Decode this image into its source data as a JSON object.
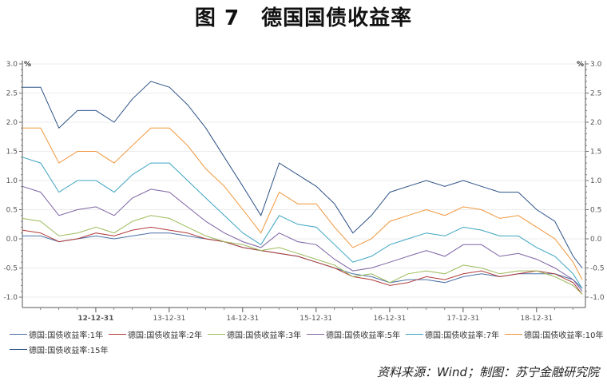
{
  "title": "图 7　德国国债收益率",
  "source": "资料来源：Wind；制图：苏宁金融研究院",
  "chart_data": {
    "type": "line",
    "title": "图 7　德国国债收益率",
    "unit_left": "%",
    "unit_right": "%",
    "ylim": [
      -1.0,
      3.0
    ],
    "yticks": [
      "3.0",
      "2.5",
      "2.0",
      "1.5",
      "1.0",
      "0.5",
      "0.0",
      "-0.5",
      "-1.0"
    ],
    "xlim": [
      "2012-01-01",
      "2019-08-31"
    ],
    "xticks": [
      "12-12-31",
      "13-12-31",
      "14-12-31",
      "15-12-31",
      "16-12-31",
      "17-12-31",
      "18-12-31"
    ],
    "grid": true,
    "legend_position": "bottom",
    "x": [
      "2012-01-01",
      "2012-04-01",
      "2012-07-01",
      "2012-10-01",
      "2013-01-01",
      "2013-04-01",
      "2013-07-01",
      "2013-10-01",
      "2014-01-01",
      "2014-04-01",
      "2014-07-01",
      "2014-10-01",
      "2015-01-01",
      "2015-04-01",
      "2015-07-01",
      "2015-10-01",
      "2016-01-01",
      "2016-04-01",
      "2016-07-01",
      "2016-10-01",
      "2017-01-01",
      "2017-04-01",
      "2017-07-01",
      "2017-10-01",
      "2018-01-01",
      "2018-04-01",
      "2018-07-01",
      "2018-10-01",
      "2019-01-01",
      "2019-04-01",
      "2019-07-01",
      "2019-08-15"
    ],
    "series": [
      {
        "name": "德国:国债收益率:1年",
        "color": "#4a6fa5",
        "values": [
          0.05,
          0.05,
          -0.05,
          0.0,
          0.05,
          0.0,
          0.05,
          0.1,
          0.1,
          0.05,
          0.0,
          -0.05,
          -0.15,
          -0.2,
          -0.25,
          -0.3,
          -0.4,
          -0.5,
          -0.6,
          -0.65,
          -0.75,
          -0.7,
          -0.7,
          -0.75,
          -0.65,
          -0.6,
          -0.65,
          -0.6,
          -0.6,
          -0.6,
          -0.7,
          -0.85
        ]
      },
      {
        "name": "德国:国债收益率:2年",
        "color": "#b03a3a",
        "values": [
          0.15,
          0.1,
          -0.05,
          0.0,
          0.1,
          0.05,
          0.15,
          0.2,
          0.15,
          0.1,
          0.0,
          -0.05,
          -0.15,
          -0.2,
          -0.25,
          -0.3,
          -0.4,
          -0.5,
          -0.65,
          -0.7,
          -0.8,
          -0.75,
          -0.65,
          -0.7,
          -0.6,
          -0.55,
          -0.65,
          -0.6,
          -0.55,
          -0.6,
          -0.75,
          -0.95
        ]
      },
      {
        "name": "德国:国债收益率:3年",
        "color": "#9bbb59",
        "values": [
          0.35,
          0.3,
          0.05,
          0.1,
          0.2,
          0.1,
          0.3,
          0.4,
          0.35,
          0.2,
          0.05,
          -0.05,
          -0.1,
          -0.2,
          -0.15,
          -0.25,
          -0.35,
          -0.45,
          -0.65,
          -0.6,
          -0.75,
          -0.6,
          -0.55,
          -0.6,
          -0.45,
          -0.5,
          -0.6,
          -0.55,
          -0.55,
          -0.65,
          -0.8,
          -0.95
        ]
      },
      {
        "name": "德国:国债收益率:5年",
        "color": "#7e62a3",
        "values": [
          0.9,
          0.8,
          0.4,
          0.5,
          0.55,
          0.4,
          0.7,
          0.85,
          0.8,
          0.55,
          0.3,
          0.1,
          -0.05,
          -0.15,
          0.1,
          -0.05,
          -0.1,
          -0.35,
          -0.55,
          -0.5,
          -0.4,
          -0.3,
          -0.2,
          -0.3,
          -0.1,
          -0.1,
          -0.3,
          -0.25,
          -0.35,
          -0.5,
          -0.7,
          -0.9
        ]
      },
      {
        "name": "德国:国债收益率:7年",
        "color": "#3ca4c0",
        "values": [
          1.4,
          1.3,
          0.8,
          1.0,
          1.0,
          0.8,
          1.1,
          1.3,
          1.3,
          1.0,
          0.7,
          0.4,
          0.1,
          -0.1,
          0.4,
          0.25,
          0.2,
          -0.1,
          -0.4,
          -0.3,
          -0.1,
          0.0,
          0.1,
          0.05,
          0.2,
          0.15,
          0.05,
          0.05,
          -0.15,
          -0.3,
          -0.6,
          -0.85
        ]
      },
      {
        "name": "德国:国债收益率:10年",
        "color": "#f0953a",
        "values": [
          1.9,
          1.9,
          1.3,
          1.5,
          1.5,
          1.3,
          1.6,
          1.9,
          1.9,
          1.6,
          1.2,
          0.9,
          0.5,
          0.1,
          0.8,
          0.6,
          0.6,
          0.2,
          -0.15,
          0.0,
          0.3,
          0.4,
          0.5,
          0.4,
          0.55,
          0.5,
          0.35,
          0.4,
          0.2,
          0.0,
          -0.4,
          -0.7
        ]
      },
      {
        "name": "德国:国债收益率:15年",
        "color": "#2d5286",
        "values": [
          2.6,
          2.6,
          1.9,
          2.2,
          2.2,
          2.0,
          2.4,
          2.7,
          2.6,
          2.3,
          1.9,
          1.4,
          0.9,
          0.4,
          1.3,
          1.1,
          0.9,
          0.6,
          0.1,
          0.4,
          0.8,
          0.9,
          1.0,
          0.9,
          1.0,
          0.9,
          0.8,
          0.8,
          0.5,
          0.3,
          -0.3,
          -0.5
        ]
      }
    ]
  }
}
